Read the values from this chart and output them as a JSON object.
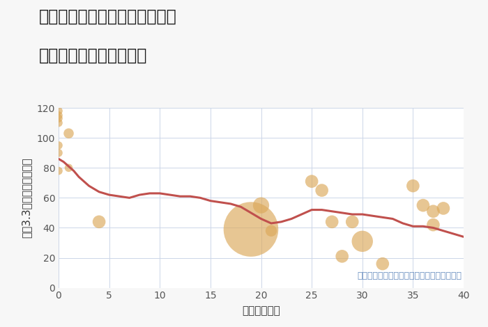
{
  "title_line1": "愛知県名古屋市港区南十番町の",
  "title_line2": "築年数別中古戸建て価格",
  "xlabel": "築年数（年）",
  "ylabel": "坪（3.3㎡）単価（万円）",
  "bg_color": "#f7f7f7",
  "plot_bg_color": "#ffffff",
  "grid_color": "#ccd6e8",
  "xlim": [
    0,
    40
  ],
  "ylim": [
    0,
    120
  ],
  "xticks": [
    0,
    5,
    10,
    15,
    20,
    25,
    30,
    35,
    40
  ],
  "yticks": [
    0,
    20,
    40,
    60,
    80,
    100,
    120
  ],
  "scatter_x": [
    0,
    0,
    0,
    0,
    0,
    0,
    0,
    1,
    1,
    4,
    19,
    20,
    21,
    25,
    26,
    27,
    28,
    29,
    30,
    32,
    35,
    36,
    37,
    37,
    38
  ],
  "scatter_y": [
    118,
    115,
    113,
    110,
    95,
    90,
    78,
    103,
    80,
    44,
    39,
    55,
    38,
    71,
    65,
    44,
    21,
    44,
    31,
    16,
    68,
    55,
    51,
    42,
    53
  ],
  "scatter_sizes": [
    70,
    70,
    70,
    70,
    70,
    70,
    70,
    110,
    70,
    180,
    3200,
    280,
    140,
    180,
    180,
    180,
    180,
    180,
    480,
    180,
    180,
    180,
    180,
    180,
    180
  ],
  "scatter_color": "#dba85a",
  "scatter_alpha": 0.65,
  "line_x": [
    0,
    0.5,
    1,
    1.5,
    2,
    3,
    4,
    5,
    6,
    7,
    8,
    9,
    10,
    11,
    12,
    13,
    14,
    15,
    16,
    17,
    18,
    19,
    20,
    21,
    22,
    23,
    24,
    25,
    26,
    27,
    28,
    29,
    30,
    31,
    32,
    33,
    34,
    35,
    36,
    37,
    38,
    39,
    40
  ],
  "line_y": [
    86,
    84,
    81,
    78,
    74,
    68,
    64,
    62,
    61,
    60,
    62,
    63,
    63,
    62,
    61,
    61,
    60,
    58,
    57,
    56,
    54,
    50,
    46,
    43,
    44,
    46,
    49,
    52,
    52,
    51,
    50,
    49,
    49,
    48,
    47,
    46,
    43,
    41,
    41,
    40,
    38,
    36,
    34
  ],
  "line_color": "#c0504d",
  "line_width": 2.2,
  "annotation": "円の大きさは、取引のあった物件面積を示す",
  "annotation_color": "#6a8fc0",
  "title_fontsize": 17,
  "label_fontsize": 11,
  "tick_fontsize": 10,
  "annotation_fontsize": 9
}
